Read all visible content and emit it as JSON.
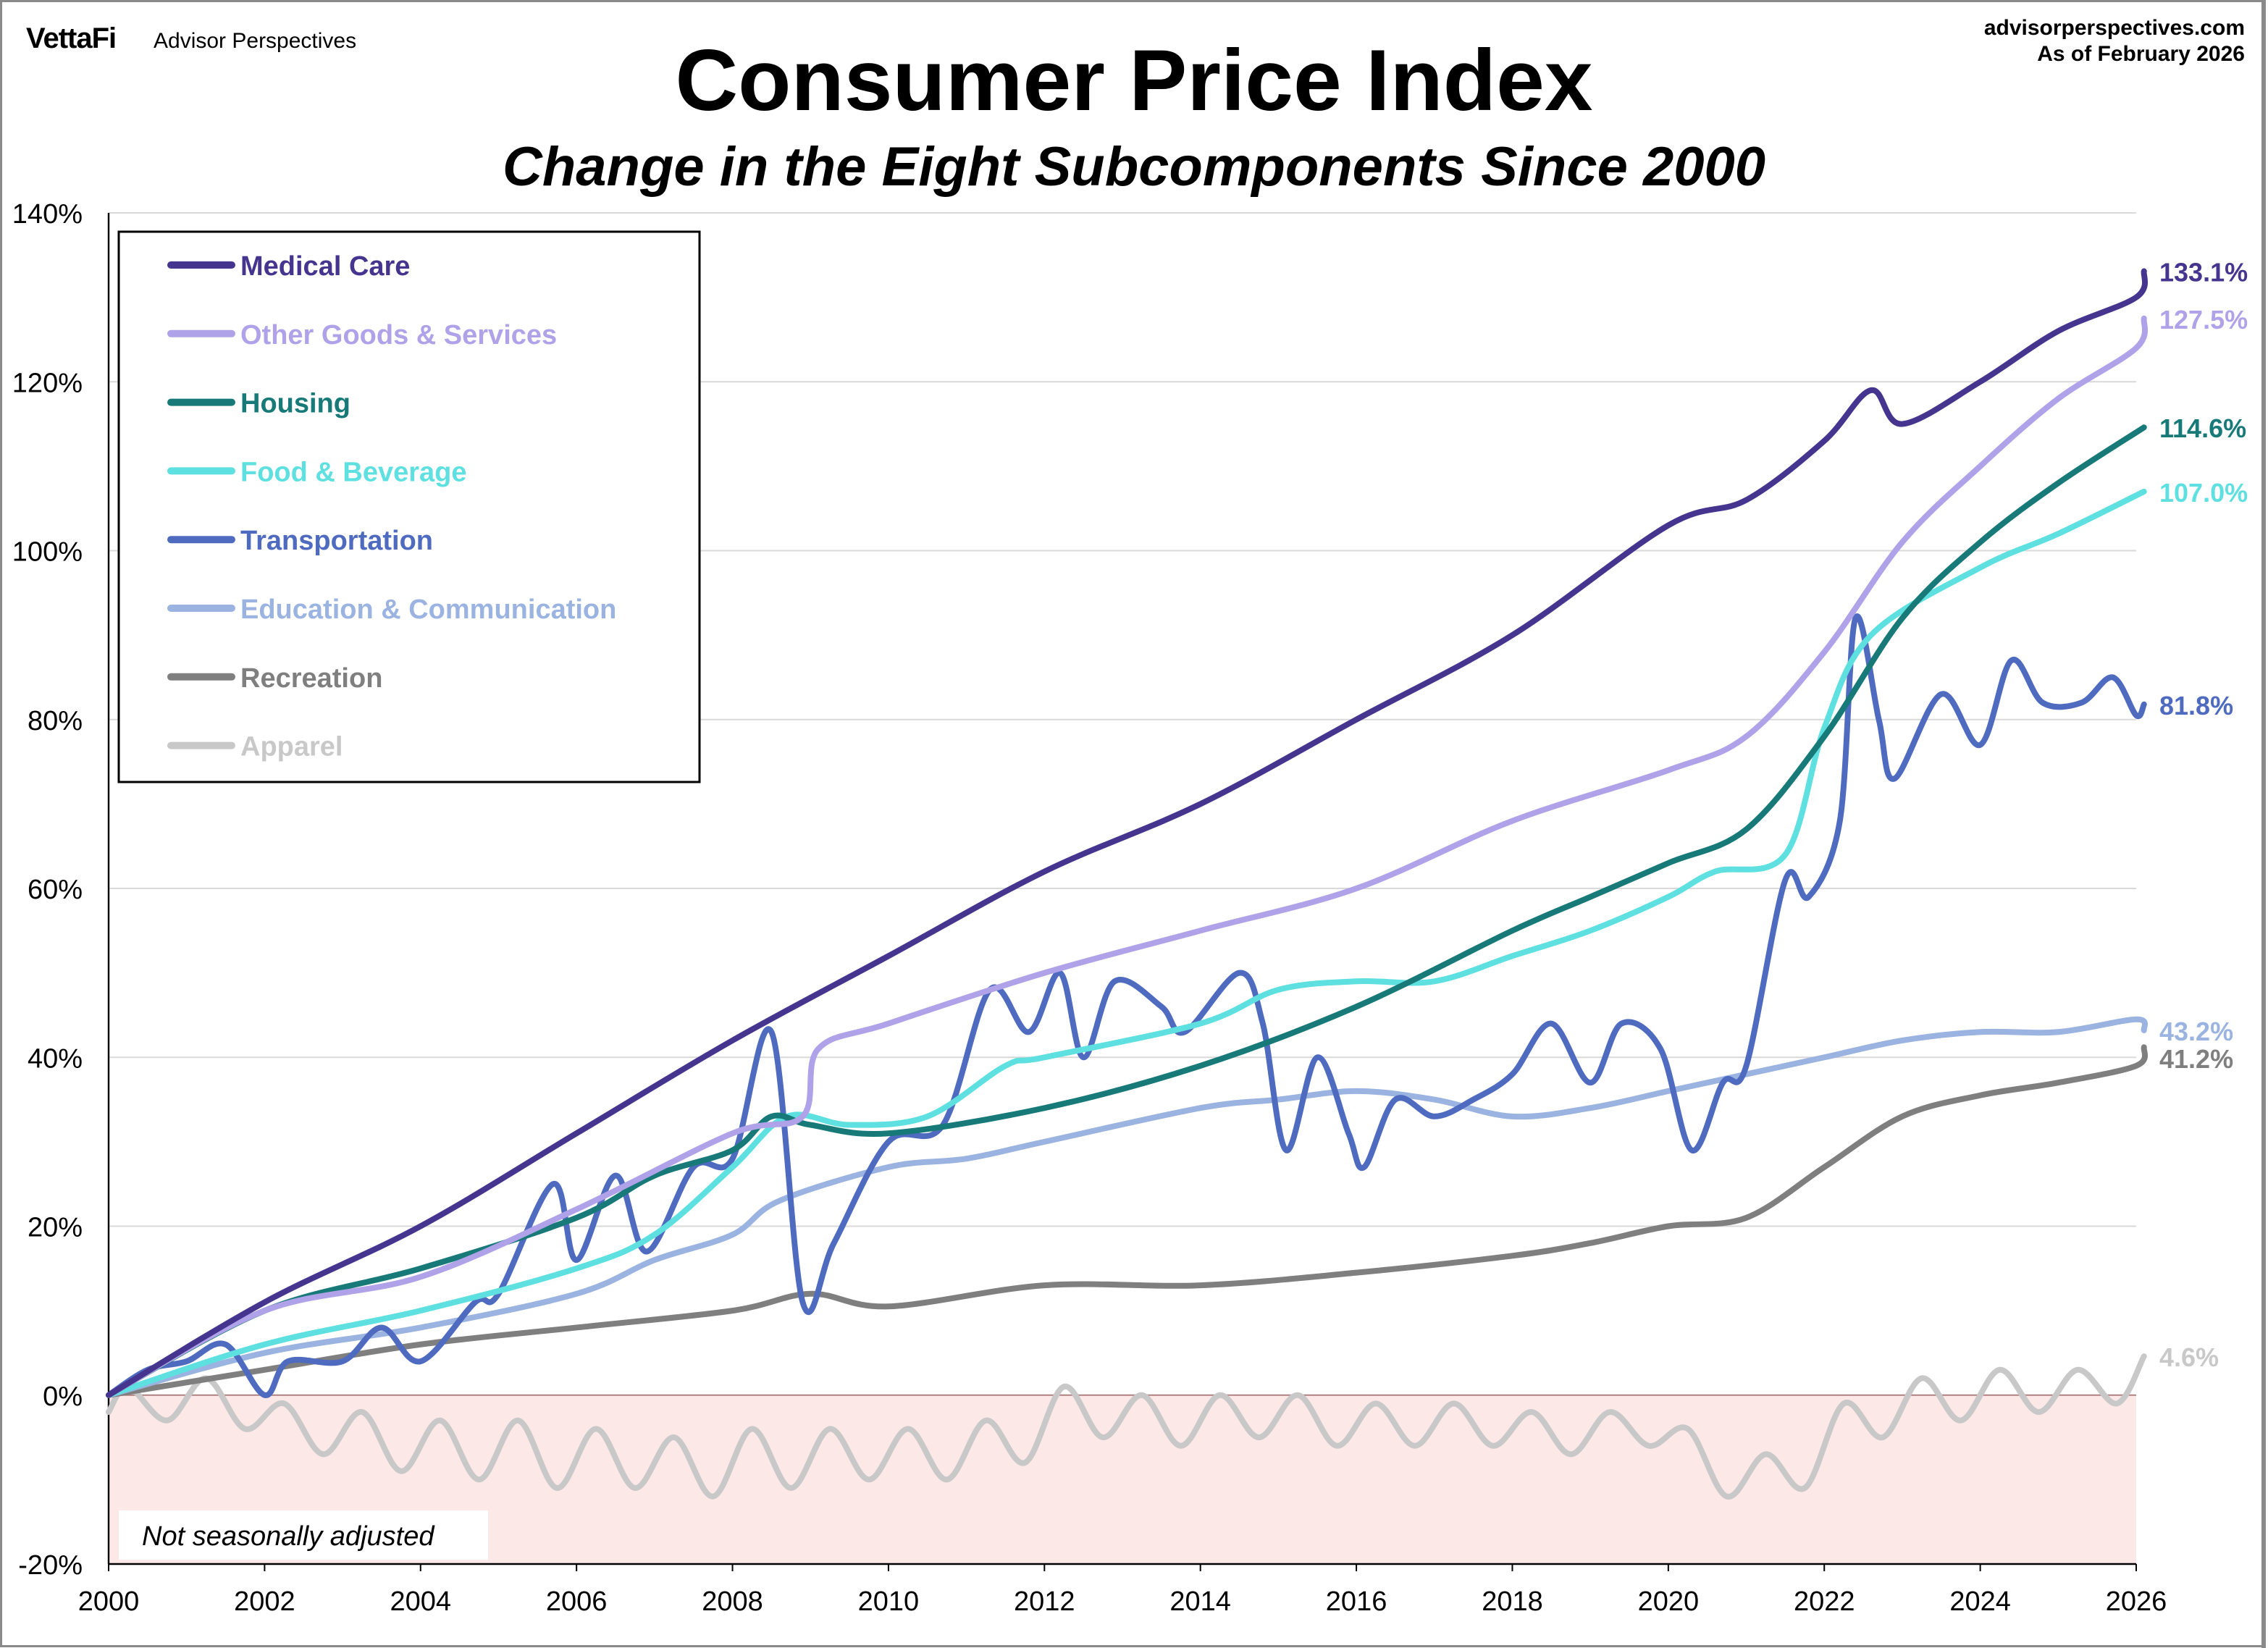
{
  "header": {
    "logo": "VettaFi",
    "brand": "Advisor Perspectives",
    "source": "advisorperspectives.com",
    "as_of": "As of February 2026"
  },
  "note": "Not seasonally adjusted",
  "chart_data": {
    "type": "line",
    "title": "Consumer Price Index",
    "subtitle": "Change in the Eight Subcomponents Since 2000",
    "xlabel": "",
    "ylabel": "",
    "xlim": [
      2000,
      2026
    ],
    "ylim": [
      -20,
      140
    ],
    "x_ticks": [
      "2000",
      "2002",
      "2004",
      "2006",
      "2008",
      "2010",
      "2012",
      "2014",
      "2016",
      "2018",
      "2020",
      "2022",
      "2024",
      "2026"
    ],
    "y_ticks": [
      "-20%",
      "0%",
      "20%",
      "40%",
      "60%",
      "80%",
      "100%",
      "120%",
      "140%"
    ],
    "grid": "horizontal",
    "legend": "top-left",
    "shaded_region": {
      "from": -20,
      "to": 0,
      "color": "#fde8e8"
    },
    "series": [
      {
        "name": "Medical Care",
        "color": "#46358f",
        "end_label": "133.1%",
        "x": [
          2000,
          2002,
          2004,
          2006,
          2008,
          2010,
          2012,
          2014,
          2016,
          2018,
          2020,
          2021,
          2022,
          2022.6,
          2023,
          2024,
          2025,
          2026,
          2026.1
        ],
        "y": [
          0,
          11,
          20,
          31,
          42,
          52,
          62,
          70,
          80,
          90,
          103,
          106,
          113,
          119,
          115,
          120,
          126,
          130,
          133.1
        ]
      },
      {
        "name": "Other Goods & Services",
        "color": "#b0a2e8",
        "end_label": "127.5%",
        "x": [
          2000,
          2002,
          2004,
          2006,
          2008,
          2008.9,
          2009.1,
          2010,
          2012,
          2014,
          2016,
          2018,
          2020,
          2021,
          2022,
          2023,
          2024,
          2025,
          2026,
          2026.1
        ],
        "y": [
          0,
          10,
          14,
          22,
          31,
          33,
          41,
          44,
          50,
          55,
          60,
          68,
          74,
          78,
          88,
          101,
          110,
          118,
          124,
          127.5
        ]
      },
      {
        "name": "Housing",
        "color": "#177a78",
        "end_label": "114.6%",
        "x": [
          2000,
          2002,
          2004,
          2006,
          2007,
          2008,
          2008.5,
          2009,
          2010,
          2012,
          2014,
          2016,
          2018,
          2019,
          2020,
          2021,
          2022,
          2023,
          2024,
          2025,
          2026.1
        ],
        "y": [
          0,
          10,
          15,
          21,
          26,
          29,
          33,
          32,
          31,
          34,
          39,
          46,
          55,
          59,
          63,
          67,
          78,
          92,
          101,
          108,
          114.6
        ]
      },
      {
        "name": "Food & Beverage",
        "color": "#5ee0e0",
        "end_label": "107.0%",
        "x": [
          2000,
          2002,
          2004,
          2006,
          2007,
          2008,
          2008.7,
          2009.5,
          2010.5,
          2011.5,
          2012,
          2014,
          2015,
          2016,
          2017,
          2018,
          2019,
          2020,
          2020.6,
          2021.5,
          2022,
          2022.6,
          2024,
          2025,
          2026.1
        ],
        "y": [
          0,
          6,
          10,
          15,
          19,
          27,
          33,
          32,
          33,
          39,
          40,
          44,
          48,
          49,
          49,
          52,
          55,
          59,
          62,
          64,
          79,
          90,
          98,
          102,
          107.0
        ]
      },
      {
        "name": "Transportation",
        "color": "#4e6bc0",
        "end_label": "81.8%",
        "x": [
          2000,
          2000.5,
          2001,
          2001.5,
          2002,
          2002.3,
          2003,
          2003.5,
          2004,
          2004.7,
          2005,
          2005.7,
          2006,
          2006.5,
          2006.9,
          2007.5,
          2008,
          2008.5,
          2008.9,
          2009.3,
          2010,
          2010.7,
          2011.3,
          2011.8,
          2012.2,
          2012.5,
          2012.9,
          2013.5,
          2013.8,
          2014.5,
          2014.8,
          2015.1,
          2015.5,
          2015.9,
          2016.1,
          2016.5,
          2017,
          2017.5,
          2018,
          2018.5,
          2019,
          2019.4,
          2019.9,
          2020.3,
          2020.7,
          2021,
          2021.5,
          2021.8,
          2022.2,
          2022.4,
          2022.7,
          2022.9,
          2023.5,
          2024,
          2024.4,
          2024.8,
          2025.3,
          2025.7,
          2026,
          2026.1
        ],
        "y": [
          0,
          3,
          4,
          6,
          0,
          4,
          4,
          8,
          4,
          11,
          12,
          25,
          16,
          26,
          17,
          27,
          28,
          43,
          11,
          18,
          30,
          32,
          48,
          43,
          50,
          40,
          49,
          46,
          43,
          50,
          44,
          29,
          40,
          31,
          27,
          35,
          33,
          35,
          38,
          44,
          37,
          44,
          41,
          29,
          37,
          39,
          61,
          59,
          68,
          92,
          80,
          73,
          83,
          77,
          87,
          82,
          82,
          85,
          80.5,
          81.8
        ]
      },
      {
        "name": "Education & Communication",
        "color": "#9ab3e0",
        "end_label": "43.2%",
        "x": [
          2000,
          2002,
          2004,
          2006,
          2007,
          2008,
          2008.6,
          2010,
          2011,
          2012,
          2014,
          2015,
          2016,
          2017,
          2018,
          2019,
          2020,
          2021,
          2022,
          2023,
          2024,
          2025,
          2026,
          2026.1
        ],
        "y": [
          0,
          5,
          8,
          12,
          16,
          19,
          23,
          27,
          28,
          30,
          34,
          35,
          36,
          35,
          33,
          34,
          36,
          38,
          40,
          42,
          43,
          43,
          44.5,
          43.2
        ]
      },
      {
        "name": "Recreation",
        "color": "#7f7f7f",
        "end_label": "41.2%",
        "x": [
          2000,
          2002,
          2004,
          2006,
          2008,
          2009,
          2010,
          2012,
          2014,
          2016,
          2018,
          2019,
          2020,
          2021,
          2022,
          2023,
          2024,
          2025,
          2026,
          2026.1
        ],
        "y": [
          0,
          3,
          6,
          8,
          10,
          12,
          10.5,
          13,
          13,
          14.5,
          16.5,
          18,
          20,
          21,
          27,
          33,
          35.5,
          37,
          39,
          41.2
        ]
      },
      {
        "name": "Apparel",
        "color": "#c8c8c8",
        "end_label": "4.6%",
        "x": [
          2000,
          2000.25,
          2000.75,
          2001.25,
          2001.75,
          2002.25,
          2002.75,
          2003.25,
          2003.75,
          2004.25,
          2004.75,
          2005.25,
          2005.75,
          2006.25,
          2006.75,
          2007.25,
          2007.75,
          2008.25,
          2008.75,
          2009.25,
          2009.75,
          2010.25,
          2010.75,
          2011.25,
          2011.75,
          2012.25,
          2012.75,
          2013.25,
          2013.75,
          2014.25,
          2014.75,
          2015.25,
          2015.75,
          2016.25,
          2016.75,
          2017.25,
          2017.75,
          2018.25,
          2018.75,
          2019.25,
          2019.75,
          2020.25,
          2020.75,
          2021.25,
          2021.75,
          2022.25,
          2022.75,
          2023.25,
          2023.75,
          2024.25,
          2024.75,
          2025.25,
          2025.75,
          2026.1
        ],
        "y": [
          -2,
          1,
          -3,
          2,
          -4,
          -1,
          -7,
          -2,
          -9,
          -3,
          -10,
          -3,
          -11,
          -4,
          -11,
          -5,
          -12,
          -4,
          -11,
          -4,
          -10,
          -4,
          -10,
          -3,
          -8,
          1,
          -5,
          0,
          -6,
          0,
          -5,
          0,
          -6,
          -1,
          -6,
          -1,
          -6,
          -2,
          -7,
          -2,
          -6,
          -4,
          -12,
          -7,
          -11,
          -1,
          -5,
          2,
          -3,
          3,
          -2,
          3,
          -1,
          4.6
        ]
      }
    ]
  }
}
